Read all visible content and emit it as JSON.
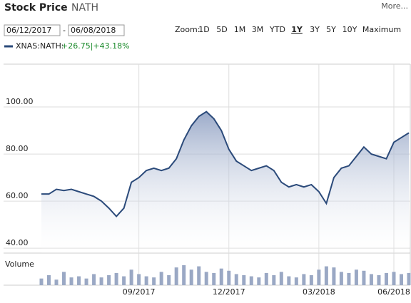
{
  "header": {
    "title": "Stock Price",
    "ticker": "NATH",
    "more": "More...",
    "date_from": "06/12/2017",
    "date_separator": "-",
    "date_to": "06/08/2018",
    "zoom_label": "Zoom:",
    "zoom_options": [
      "1D",
      "5D",
      "1M",
      "3M",
      "YTD",
      "1Y",
      "3Y",
      "5Y",
      "10Y",
      "Maximum"
    ],
    "zoom_active": "1Y"
  },
  "chart_data": {
    "type": "line",
    "categories": [
      null,
      null,
      null,
      null,
      null,
      null,
      null,
      null,
      null,
      null,
      null,
      null,
      null,
      "09/2017",
      null,
      null,
      null,
      null,
      null,
      null,
      null,
      null,
      null,
      null,
      null,
      "12/2017",
      null,
      null,
      null,
      null,
      null,
      null,
      null,
      null,
      null,
      null,
      null,
      "03/2018",
      null,
      null,
      null,
      null,
      null,
      null,
      null,
      null,
      null,
      "06/2018",
      null,
      null
    ],
    "series": [
      {
        "name": "XNAS:NATH:",
        "change_label": "+26.75|+43.18%",
        "color": "#2b4a7a",
        "values": [
          63,
          63,
          65,
          64.5,
          65,
          64,
          63,
          62,
          60,
          57,
          53.5,
          57,
          68,
          70,
          73,
          74,
          73,
          74,
          78,
          86,
          92,
          96,
          98,
          95,
          90,
          82,
          77,
          75,
          73,
          74,
          75,
          73,
          68,
          66,
          67,
          66,
          67,
          64,
          59,
          70,
          74,
          75,
          79,
          83,
          80,
          79,
          78,
          85,
          87,
          89
        ]
      }
    ],
    "volume": {
      "name": "Volume",
      "color": "#9aa8c4",
      "values": [
        30,
        45,
        25,
        60,
        35,
        40,
        30,
        50,
        35,
        45,
        55,
        40,
        70,
        50,
        40,
        35,
        60,
        45,
        80,
        90,
        70,
        85,
        60,
        55,
        75,
        65,
        50,
        45,
        40,
        35,
        55,
        45,
        60,
        40,
        35,
        50,
        45,
        70,
        85,
        80,
        60,
        55,
        70,
        65,
        50,
        45,
        55,
        60,
        50,
        55
      ]
    },
    "ylim": [
      37.9,
      118.2
    ],
    "yticks": [
      {
        "value": 40,
        "label": "40.00"
      },
      {
        "value": 60,
        "label": "60.00"
      },
      {
        "value": 80,
        "label": "80.00"
      },
      {
        "value": 100,
        "label": "100.00"
      }
    ],
    "grid": true
  }
}
